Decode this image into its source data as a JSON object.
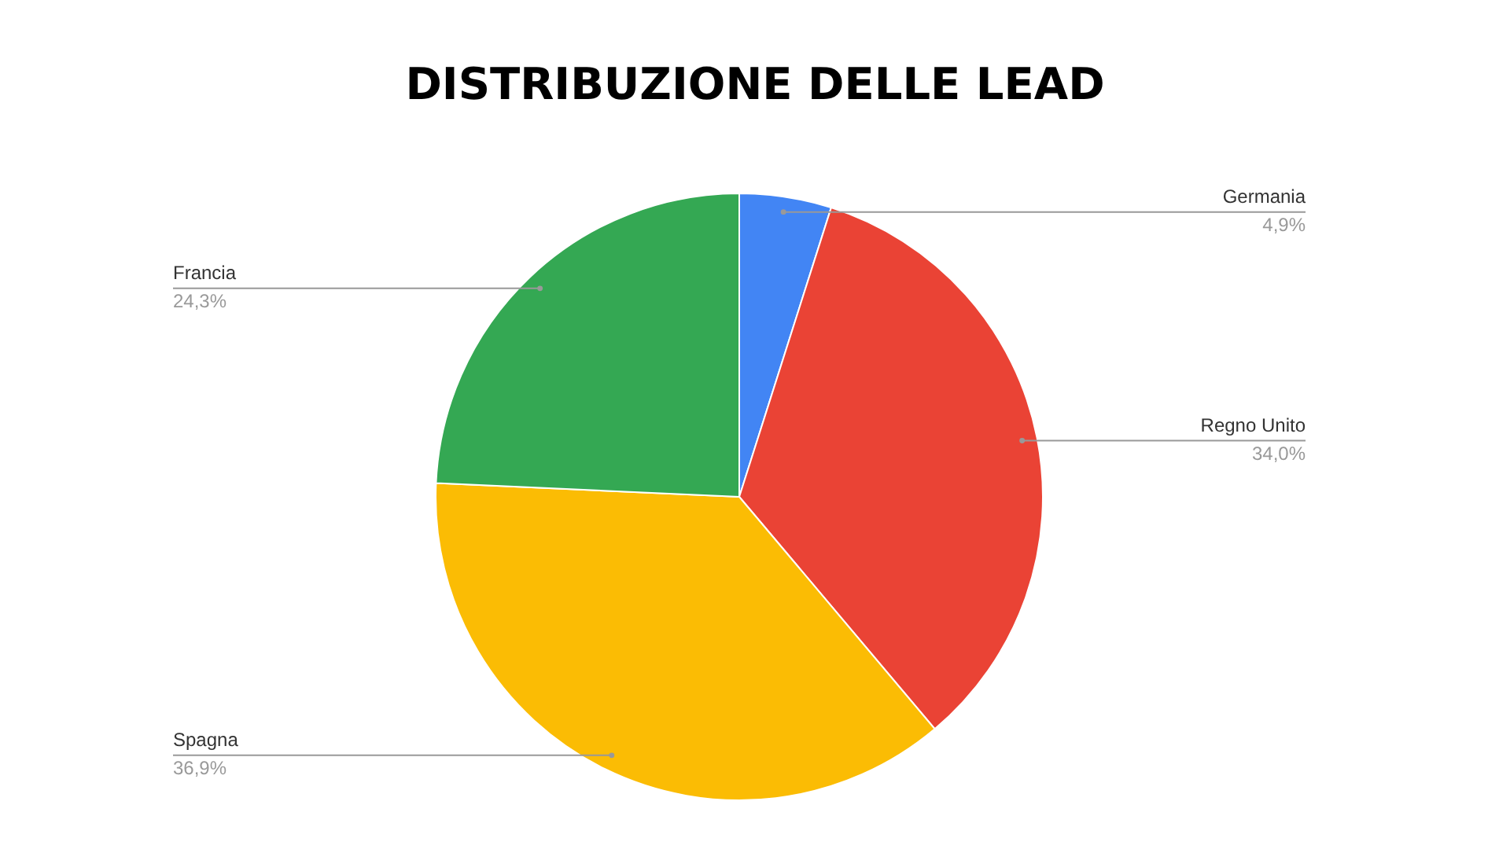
{
  "chart_data": {
    "type": "pie",
    "title": "DISTRIBUZIONE DELLE LEAD",
    "categories": [
      "Germania",
      "Regno Unito",
      "Spagna",
      "Francia"
    ],
    "values": [
      4.9,
      34.0,
      36.9,
      24.3
    ],
    "value_labels": [
      "4,9%",
      "34,0%",
      "36,9%",
      "24,3%"
    ],
    "colors": [
      "#4285f4",
      "#ea4335",
      "#fbbc04",
      "#34a853"
    ]
  }
}
